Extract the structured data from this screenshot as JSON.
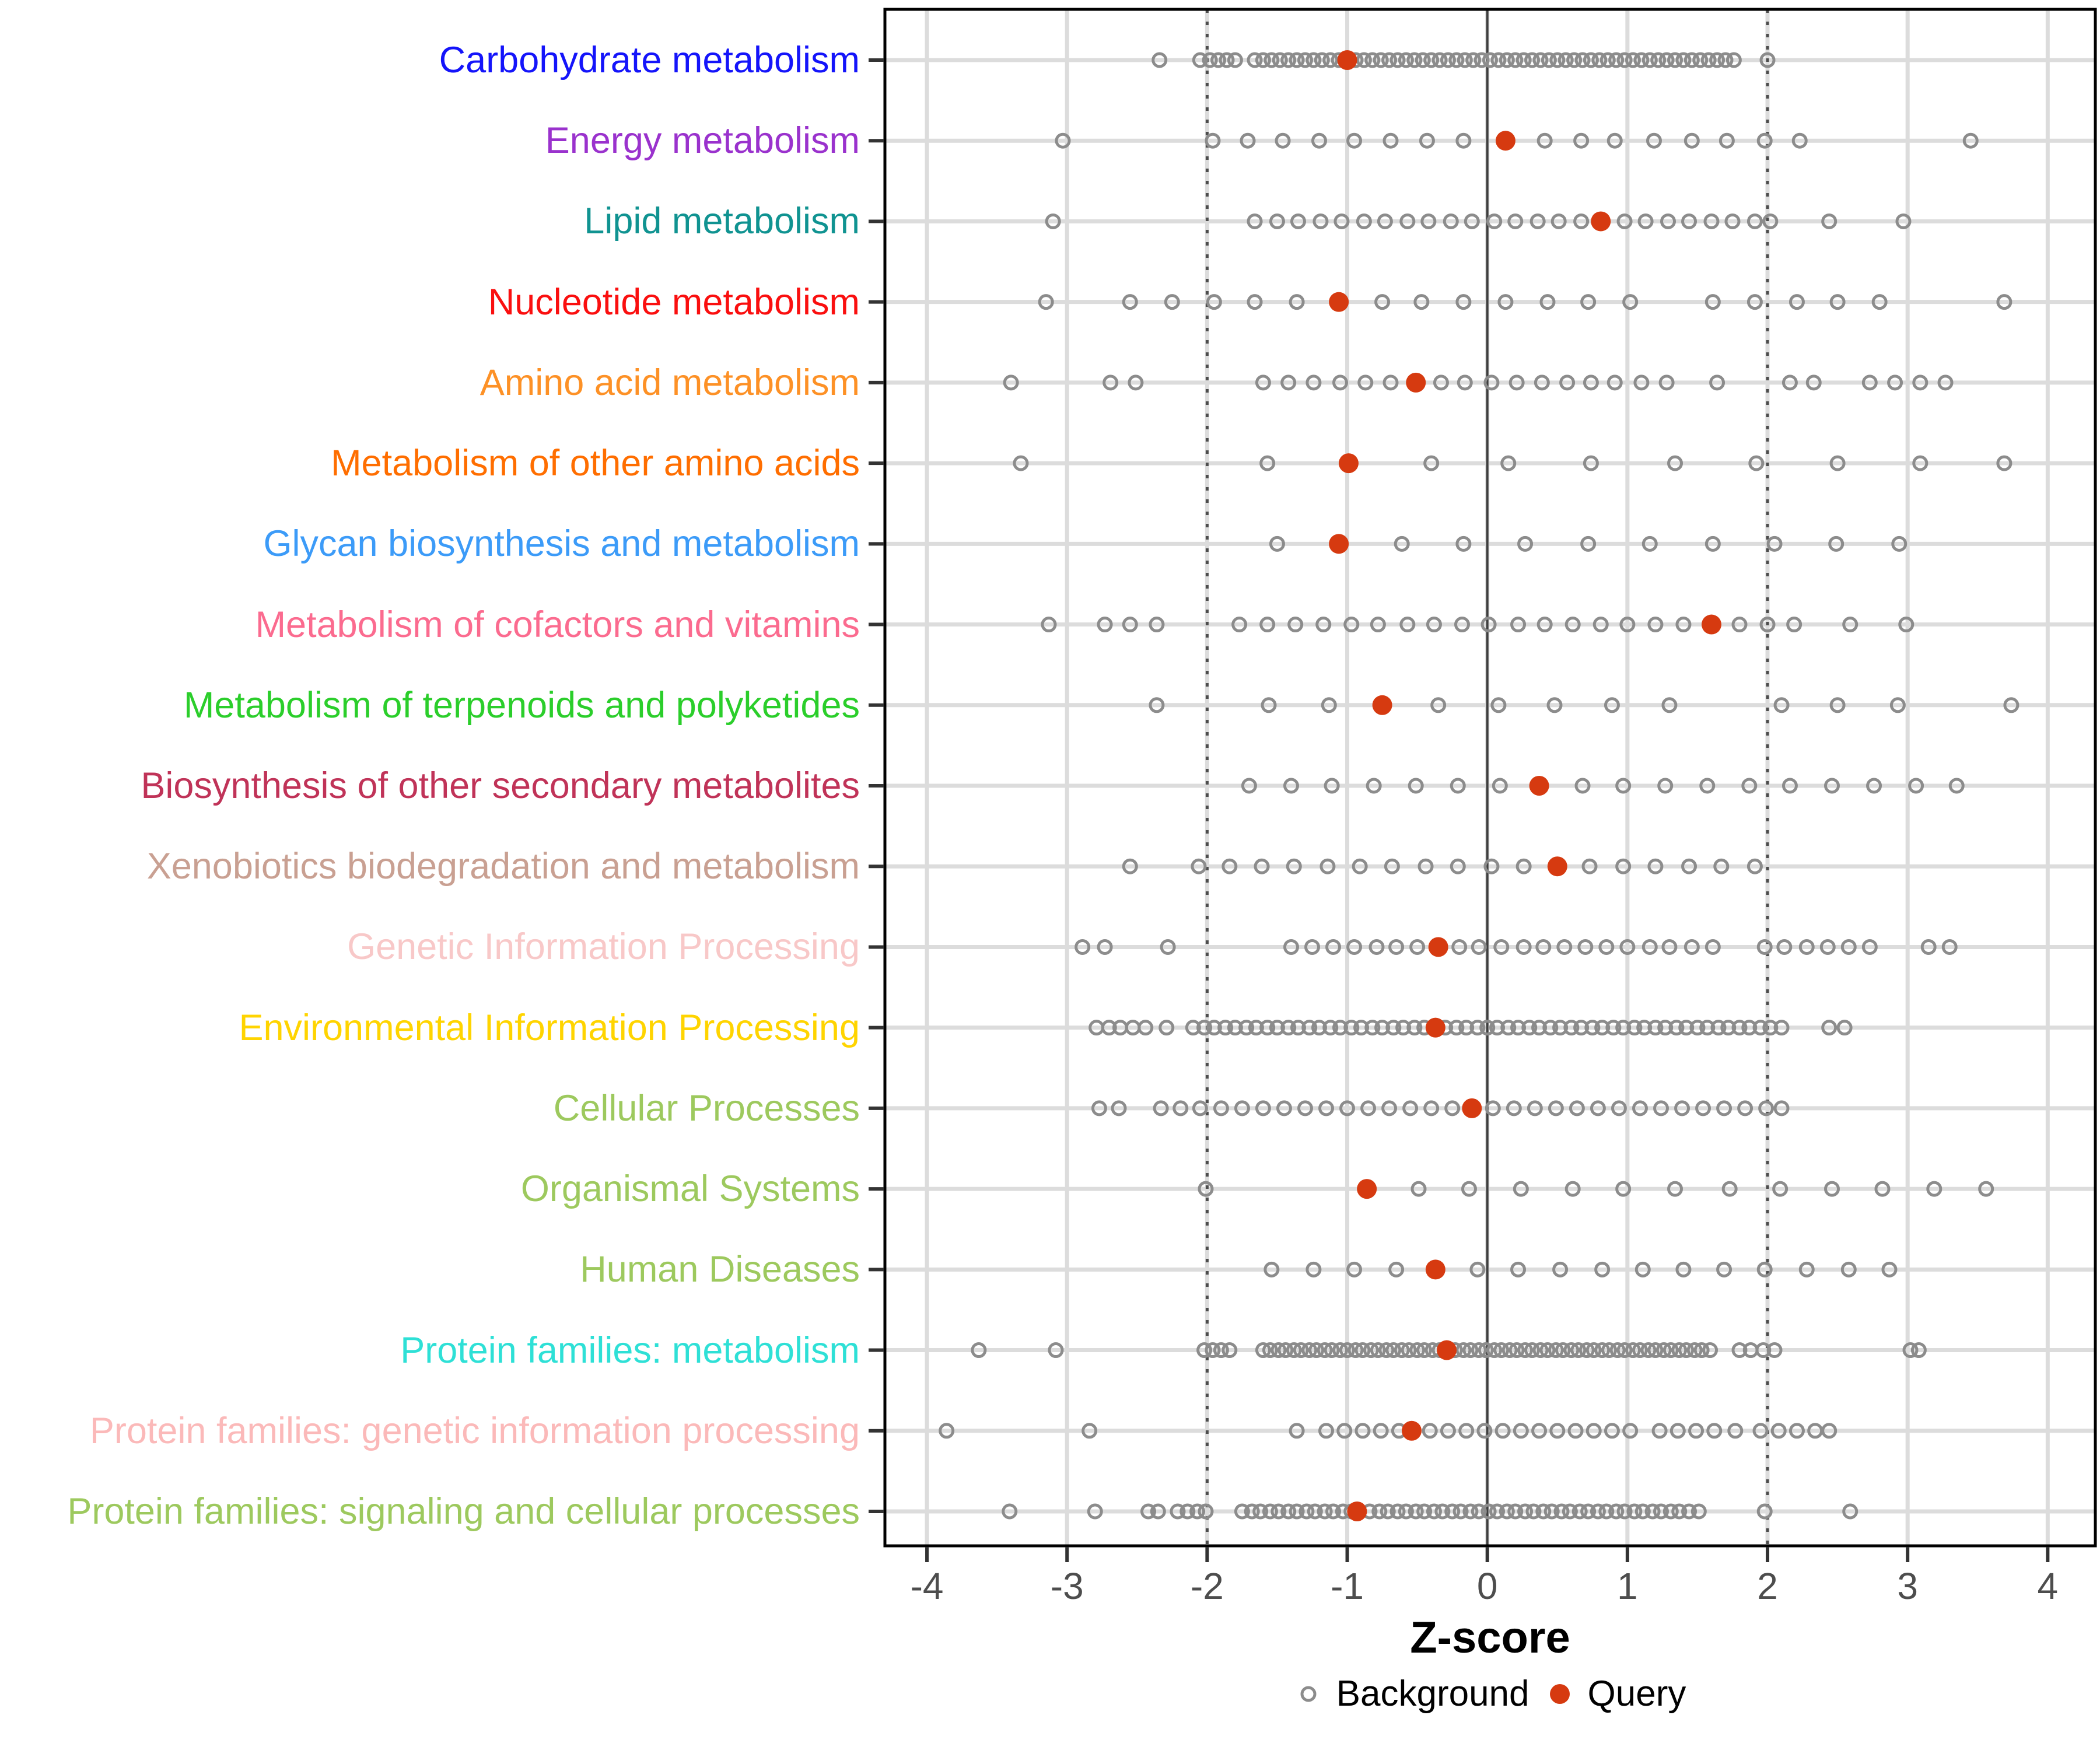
{
  "chart_data": {
    "type": "scatter",
    "title": "",
    "xlabel": "Z-score",
    "xlim": [
      -4.3,
      4.34
    ],
    "xticks": [
      -4,
      -3,
      -2,
      -1,
      0,
      1,
      2,
      3,
      4
    ],
    "grid": "major-gray",
    "vline_solid": 0,
    "vlines_dashed": [
      -2,
      2
    ],
    "legend_position": "bottom-center",
    "legend": [
      {
        "label": "Background",
        "marker": "open-circle",
        "color": "#8c8c8c"
      },
      {
        "label": "Query",
        "marker": "filled-circle",
        "color": "#d63a10"
      }
    ],
    "point_colors": {
      "background_stroke": "#8c8c8c",
      "query_fill": "#d63a10"
    },
    "axis_colors": {
      "tick_label": "#4d4d4d",
      "gridline": "#dcdcdc",
      "guide_dark": "#4d4d4d",
      "border": "#000000"
    },
    "rows": [
      {
        "label": "Carbohydrate metabolism",
        "color": "#1414fa",
        "query": -1.0,
        "background": [
          -2.34,
          -2.05,
          -1.98,
          -1.92,
          -1.86,
          -1.8,
          -1.66,
          -1.6,
          -1.54,
          -1.48,
          -1.42,
          -1.36,
          -1.3,
          -1.24,
          -1.18,
          -1.12,
          -1.06,
          -0.94,
          -0.88,
          -0.82,
          -0.76,
          -0.7,
          -0.64,
          -0.58,
          -0.52,
          -0.46,
          -0.4,
          -0.34,
          -0.28,
          -0.22,
          -0.16,
          -0.1,
          -0.04,
          0.02,
          0.08,
          0.14,
          0.2,
          0.26,
          0.32,
          0.38,
          0.44,
          0.5,
          0.56,
          0.62,
          0.68,
          0.74,
          0.8,
          0.86,
          0.92,
          0.98,
          1.04,
          1.1,
          1.16,
          1.22,
          1.28,
          1.34,
          1.4,
          1.46,
          1.52,
          1.58,
          1.64,
          1.7,
          1.76,
          2.0
        ]
      },
      {
        "label": "Energy metabolism",
        "color": "#9a32cd",
        "query": 0.13,
        "background": [
          -3.03,
          -1.96,
          -1.71,
          -1.46,
          -1.2,
          -0.95,
          -0.69,
          -0.43,
          -0.17,
          0.41,
          0.67,
          0.91,
          1.19,
          1.46,
          1.71,
          1.98,
          2.23,
          3.45
        ]
      },
      {
        "label": "Lipid metabolism",
        "color": "#109391",
        "query": 0.81,
        "background": [
          -3.1,
          -1.66,
          -1.5,
          -1.35,
          -1.19,
          -1.04,
          -0.88,
          -0.73,
          -0.57,
          -0.42,
          -0.26,
          -0.11,
          0.05,
          0.2,
          0.36,
          0.51,
          0.67,
          0.98,
          1.13,
          1.29,
          1.44,
          1.6,
          1.75,
          1.91,
          2.02,
          2.44,
          2.97
        ]
      },
      {
        "label": "Nucleotide metabolism",
        "color": "#fa0f0f",
        "query": -1.06,
        "background": [
          -3.15,
          -2.55,
          -2.25,
          -1.95,
          -1.66,
          -1.36,
          -0.75,
          -0.47,
          -0.17,
          0.13,
          0.43,
          0.72,
          1.02,
          1.61,
          1.91,
          2.21,
          2.5,
          2.8,
          3.69
        ]
      },
      {
        "label": "Amino acid metabolism",
        "color": "#fd9126",
        "query": -0.51,
        "background": [
          -3.4,
          -2.69,
          -2.51,
          -1.6,
          -1.42,
          -1.24,
          -1.05,
          -0.87,
          -0.69,
          -0.33,
          -0.16,
          0.03,
          0.21,
          0.39,
          0.57,
          0.74,
          0.91,
          1.1,
          1.28,
          1.64,
          2.16,
          2.33,
          2.73,
          2.91,
          3.09,
          3.27
        ]
      },
      {
        "label": "Metabolism of other amino acids",
        "color": "#ff6e00",
        "query": -0.99,
        "background": [
          -3.33,
          -1.57,
          -0.4,
          0.15,
          0.74,
          1.34,
          1.92,
          2.5,
          3.09,
          3.69
        ]
      },
      {
        "label": "Glycan biosynthesis and metabolism",
        "color": "#3c9bf8",
        "query": -1.06,
        "background": [
          -1.5,
          -0.61,
          -0.17,
          0.27,
          0.72,
          1.16,
          1.61,
          2.05,
          2.49,
          2.94
        ]
      },
      {
        "label": "Metabolism of cofactors and vitamins",
        "color": "#fb6b8f",
        "query": 1.6,
        "background": [
          -3.13,
          -2.73,
          -2.55,
          -2.36,
          -1.77,
          -1.57,
          -1.37,
          -1.17,
          -0.97,
          -0.78,
          -0.57,
          -0.38,
          -0.18,
          0.01,
          0.22,
          0.41,
          0.61,
          0.81,
          1.0,
          1.2,
          1.4,
          1.8,
          2.0,
          2.19,
          2.59,
          2.99
        ]
      },
      {
        "label": "Metabolism of terpenoids and polyketides",
        "color": "#2bce2b",
        "query": -0.75,
        "background": [
          -2.36,
          -1.56,
          -1.13,
          -0.35,
          0.08,
          0.48,
          0.89,
          1.3,
          2.1,
          2.5,
          2.93,
          3.74
        ]
      },
      {
        "label": "Biosynthesis of other secondary metabolites",
        "color": "#c03358",
        "query": 0.37,
        "background": [
          -1.7,
          -1.4,
          -1.11,
          -0.81,
          -0.51,
          -0.21,
          0.09,
          0.68,
          0.97,
          1.27,
          1.57,
          1.87,
          2.16,
          2.46,
          2.76,
          3.06,
          3.35
        ]
      },
      {
        "label": "Xenobiotics biodegradation and metabolism",
        "color": "#c9a092",
        "query": 0.5,
        "background": [
          -2.55,
          -2.06,
          -1.84,
          -1.61,
          -1.38,
          -1.14,
          -0.91,
          -0.68,
          -0.44,
          -0.21,
          0.03,
          0.26,
          0.73,
          0.97,
          1.2,
          1.44,
          1.67,
          1.91
        ]
      },
      {
        "label": "Genetic Information Processing",
        "color": "#f8c8c8",
        "query": -0.35,
        "background": [
          -2.89,
          -2.73,
          -2.28,
          -1.4,
          -1.25,
          -1.1,
          -0.95,
          -0.79,
          -0.65,
          -0.5,
          -0.2,
          -0.06,
          0.1,
          0.26,
          0.4,
          0.55,
          0.7,
          0.85,
          1.0,
          1.16,
          1.3,
          1.46,
          1.61,
          1.98,
          2.12,
          2.28,
          2.43,
          2.58,
          2.73,
          3.15,
          3.3
        ]
      },
      {
        "label": "Environmental Information Processing",
        "color": "#ffd400",
        "query": -0.37,
        "background": [
          -2.79,
          -2.7,
          -2.62,
          -2.53,
          -2.44,
          -2.29,
          -2.1,
          -2.02,
          -1.95,
          -1.87,
          -1.8,
          -1.72,
          -1.65,
          -1.57,
          -1.5,
          -1.42,
          -1.35,
          -1.27,
          -1.2,
          -1.12,
          -1.05,
          -0.97,
          -0.9,
          -0.82,
          -0.75,
          -0.67,
          -0.6,
          -0.52,
          -0.45,
          -0.3,
          -0.22,
          -0.15,
          -0.07,
          0.0,
          0.07,
          0.15,
          0.22,
          0.3,
          0.37,
          0.45,
          0.52,
          0.6,
          0.67,
          0.75,
          0.82,
          0.9,
          0.97,
          1.05,
          1.12,
          1.2,
          1.27,
          1.35,
          1.42,
          1.5,
          1.57,
          1.65,
          1.72,
          1.8,
          1.87,
          1.95,
          2.02,
          2.1,
          2.44,
          2.55
        ]
      },
      {
        "label": "Cellular Processes",
        "color": "#9dc95e",
        "query": -0.11,
        "background": [
          -2.77,
          -2.63,
          -2.33,
          -2.19,
          -2.05,
          -1.9,
          -1.75,
          -1.6,
          -1.45,
          -1.3,
          -1.15,
          -1.0,
          -0.85,
          -0.7,
          -0.55,
          -0.4,
          -0.25,
          0.04,
          0.19,
          0.34,
          0.49,
          0.64,
          0.79,
          0.94,
          1.09,
          1.24,
          1.39,
          1.54,
          1.69,
          1.84,
          1.99,
          2.1
        ]
      },
      {
        "label": "Organismal Systems",
        "color": "#9dc95e",
        "query": -0.86,
        "background": [
          -2.01,
          -0.49,
          -0.13,
          0.24,
          0.61,
          0.97,
          1.34,
          1.73,
          2.09,
          2.46,
          2.82,
          3.19,
          3.56
        ]
      },
      {
        "label": "Human Diseases",
        "color": "#9dc95e",
        "query": -0.37,
        "background": [
          -1.54,
          -1.24,
          -0.95,
          -0.65,
          -0.07,
          0.22,
          0.52,
          0.82,
          1.11,
          1.4,
          1.69,
          1.98,
          2.28,
          2.58,
          2.87
        ]
      },
      {
        "label": "Protein families: metabolism",
        "color": "#2ee0d6",
        "query": -0.29,
        "background": [
          -3.63,
          -3.08,
          -2.02,
          -1.96,
          -1.9,
          -1.84,
          -1.6,
          -1.55,
          -1.49,
          -1.44,
          -1.38,
          -1.33,
          -1.27,
          -1.22,
          -1.16,
          -1.11,
          -1.05,
          -1.0,
          -0.94,
          -0.89,
          -0.83,
          -0.78,
          -0.72,
          -0.67,
          -0.61,
          -0.56,
          -0.5,
          -0.45,
          -0.39,
          -0.34,
          -0.23,
          -0.17,
          -0.12,
          -0.06,
          -0.01,
          0.05,
          0.1,
          0.16,
          0.21,
          0.27,
          0.32,
          0.38,
          0.43,
          0.49,
          0.54,
          0.6,
          0.65,
          0.71,
          0.76,
          0.82,
          0.87,
          0.93,
          0.98,
          1.04,
          1.09,
          1.15,
          1.2,
          1.26,
          1.31,
          1.37,
          1.42,
          1.48,
          1.53,
          1.59,
          1.8,
          1.88,
          1.97,
          2.05,
          3.02,
          3.08
        ]
      },
      {
        "label": "Protein families: genetic information processing",
        "color": "#fbb9b9",
        "query": -0.54,
        "background": [
          -3.86,
          -2.84,
          -1.36,
          -1.15,
          -1.02,
          -0.89,
          -0.76,
          -0.63,
          -0.41,
          -0.28,
          -0.15,
          -0.02,
          0.11,
          0.24,
          0.37,
          0.5,
          0.63,
          0.76,
          0.89,
          1.02,
          1.23,
          1.36,
          1.49,
          1.62,
          1.77,
          1.95,
          2.08,
          2.21,
          2.34,
          2.44
        ]
      },
      {
        "label": "Protein families: signaling and cellular processes",
        "color": "#9dc95e",
        "query": -0.93,
        "background": [
          -3.41,
          -2.8,
          -2.42,
          -2.35,
          -2.21,
          -2.14,
          -2.07,
          -2.01,
          -1.75,
          -1.68,
          -1.62,
          -1.55,
          -1.49,
          -1.42,
          -1.36,
          -1.29,
          -1.23,
          -1.16,
          -1.1,
          -1.03,
          -0.97,
          -0.84,
          -0.77,
          -0.71,
          -0.64,
          -0.58,
          -0.51,
          -0.45,
          -0.38,
          -0.32,
          -0.25,
          -0.19,
          -0.12,
          -0.06,
          0.01,
          0.07,
          0.14,
          0.2,
          0.27,
          0.33,
          0.4,
          0.46,
          0.53,
          0.59,
          0.66,
          0.72,
          0.79,
          0.85,
          0.92,
          0.98,
          1.05,
          1.11,
          1.18,
          1.24,
          1.31,
          1.37,
          1.44,
          1.51,
          1.98,
          2.59
        ]
      }
    ]
  }
}
